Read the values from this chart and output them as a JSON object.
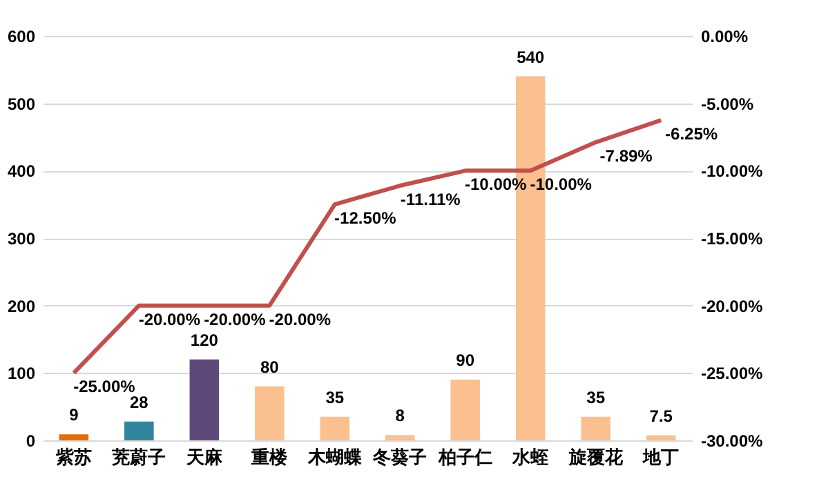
{
  "chart_data": {
    "type": "bar",
    "categories": [
      "紫苏",
      "茺蔚子",
      "天麻",
      "重楼",
      "木蝴蝶",
      "冬葵子",
      "柏子仁",
      "水蛭",
      "旋覆花",
      "地丁"
    ],
    "series": [
      {
        "colors": [
          "#e36c0a",
          "#31859c",
          "#5f497a",
          "#fac090",
          "#fac090",
          "#fac090",
          "#fac090",
          "#fac090",
          "#fac090",
          "#fac090"
        ],
        "values": [
          9,
          28,
          120,
          80,
          35,
          8,
          90,
          540,
          35,
          7.5
        ]
      },
      {
        "type": "line",
        "axis": "y2",
        "color": "#c0504d",
        "values": [
          -25,
          -20,
          -20,
          -20,
          -12.5,
          -11.11,
          -10,
          -10,
          -7.89,
          -6.25
        ],
        "value_labels": [
          "-25.00%",
          "-20.00%",
          "-20.00%",
          "-20.00%",
          "-12.50%",
          "-11.11%",
          "-10.00%",
          "-10.00%",
          "-7.89%",
          "-6.25%"
        ]
      }
    ],
    "data_labels": true,
    "ylim": [
      0,
      600
    ],
    "yticks": [
      0,
      100,
      200,
      300,
      400,
      500,
      600
    ],
    "y2lim": [
      -30,
      0
    ],
    "y2ticks": [
      {
        "value": -30,
        "label": "-30.00%"
      },
      {
        "value": -25,
        "label": "-25.00%"
      },
      {
        "value": -20,
        "label": "-20.00%"
      },
      {
        "value": -15,
        "label": "-15.00%"
      },
      {
        "value": -10,
        "label": "-10.00%"
      },
      {
        "value": -5,
        "label": "-5.00%"
      },
      {
        "value": 0,
        "label": "0.00%"
      }
    ],
    "grid": "y",
    "marker": "none"
  }
}
